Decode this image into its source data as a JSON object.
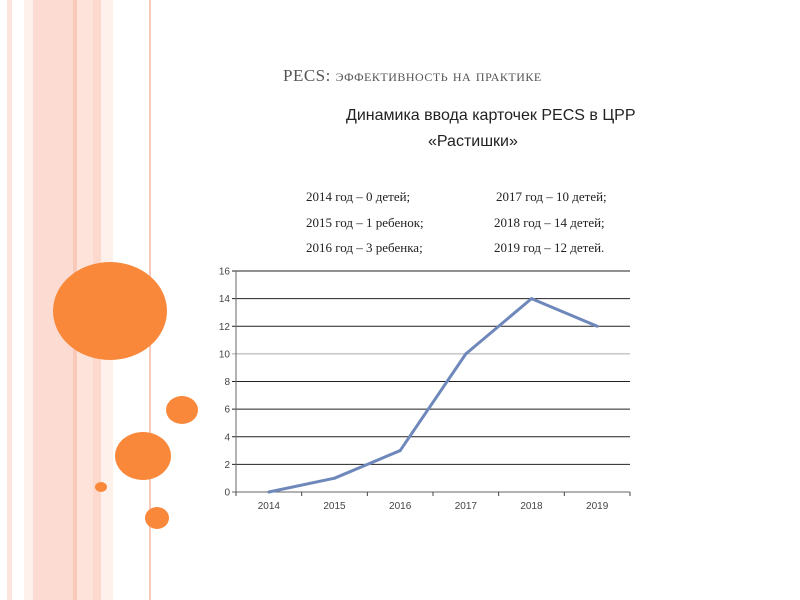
{
  "slide": {
    "title_main": "PECS:",
    "title_rest": " эффективность на практике",
    "subtitle_line1": "Динамика ввода карточек PECS в ЦРР",
    "subtitle_line2": "«Растишки»",
    "stats": [
      "2014 год – 0 детей;",
      "2015 год – 1 ребенок;",
      "2016 год – 3 ребенка;",
      "2017 год – 10 детей;",
      "2018 год – 14 детей;",
      "2019 год – 12 детей."
    ]
  },
  "colors": {
    "accent": "#f9883a",
    "stripe": "#fcdcd2",
    "line": "#6f88bb"
  },
  "chart_data": {
    "type": "line",
    "title": "",
    "xlabel": "",
    "ylabel": "",
    "categories": [
      "2014",
      "2015",
      "2016",
      "2017",
      "2018",
      "2019"
    ],
    "series": [
      {
        "name": "PECS",
        "values": [
          0,
          1,
          3,
          10,
          14,
          12
        ]
      }
    ],
    "ylim": [
      0,
      16
    ],
    "yticks": [
      0,
      2,
      4,
      6,
      8,
      10,
      12,
      14,
      16
    ],
    "grid": true,
    "legend": "none"
  }
}
